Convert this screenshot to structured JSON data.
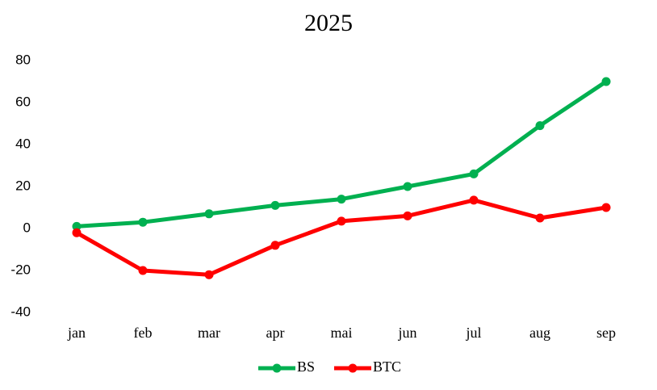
{
  "chart_data": {
    "type": "line",
    "title": "2025",
    "categories": [
      "jan",
      "feb",
      "mar",
      "apr",
      "mai",
      "jun",
      "jul",
      "aug",
      "sep"
    ],
    "series": [
      {
        "name": "BS",
        "color": "#00b050",
        "values": [
          1,
          3,
          7,
          11,
          14,
          20,
          26,
          49,
          70
        ]
      },
      {
        "name": "BTC",
        "color": "#ff0000",
        "values": [
          -2,
          -20,
          -22,
          -8,
          3.5,
          6,
          13.5,
          5,
          10
        ]
      }
    ],
    "ylim": [
      -40,
      80
    ],
    "yticks": [
      -40,
      -20,
      0,
      20,
      40,
      60,
      80
    ],
    "grid": false,
    "legend": "bottom"
  }
}
